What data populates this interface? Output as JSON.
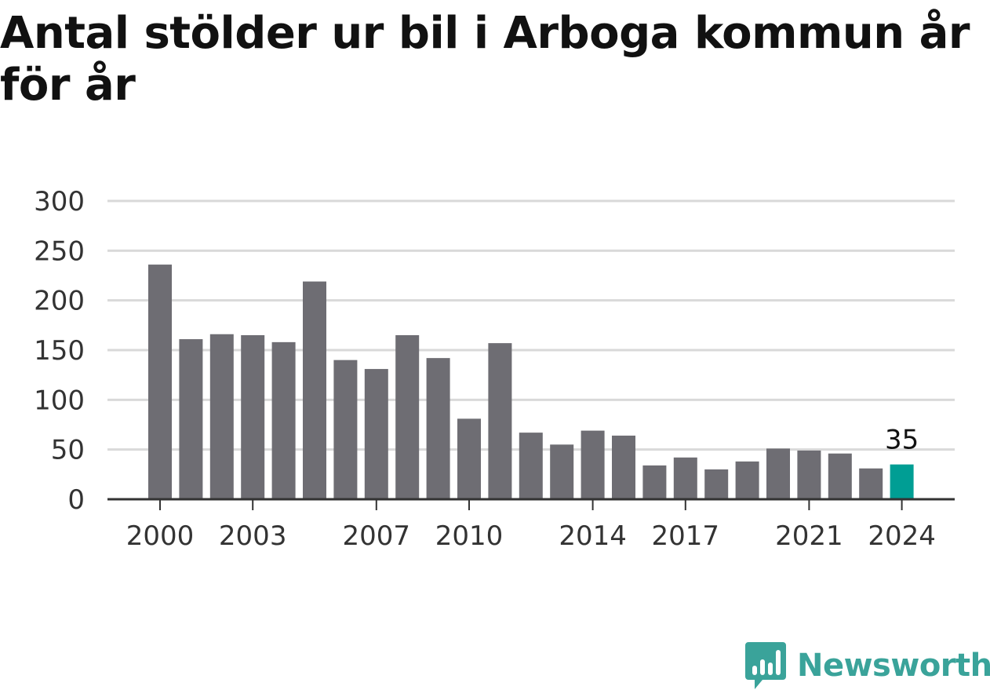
{
  "chart_data": {
    "type": "bar",
    "title": "Antal stölder ur bil i Arboga kommun år för år",
    "xlabel": "",
    "ylabel": "",
    "categories": [
      "2000",
      "2001",
      "2002",
      "2003",
      "2004",
      "2005",
      "2006",
      "2007",
      "2008",
      "2009",
      "2010",
      "2011",
      "2012",
      "2013",
      "2014",
      "2015",
      "2016",
      "2017",
      "2018",
      "2019",
      "2020",
      "2021",
      "2022",
      "2023",
      "2024"
    ],
    "values": [
      236,
      161,
      166,
      165,
      158,
      219,
      140,
      131,
      165,
      142,
      81,
      157,
      67,
      55,
      69,
      64,
      34,
      42,
      30,
      38,
      51,
      49,
      46,
      31,
      35
    ],
    "ylim": [
      0,
      300
    ],
    "yticks": [
      0,
      50,
      100,
      150,
      200,
      250,
      300
    ],
    "xtick_labels": [
      "2000",
      "2003",
      "2007",
      "2010",
      "2014",
      "2017",
      "2021",
      "2024"
    ],
    "highlight_index": 24,
    "highlight_label": "35",
    "grid": true,
    "colors": {
      "bar": "#6e6d73",
      "highlight": "#009e94",
      "grid": "#d9d9d9",
      "axis": "#333333"
    }
  },
  "brand": {
    "name": "Newsworthy",
    "color": "#3aa39a",
    "icon": "bar-chart-speech-bubble-icon"
  }
}
